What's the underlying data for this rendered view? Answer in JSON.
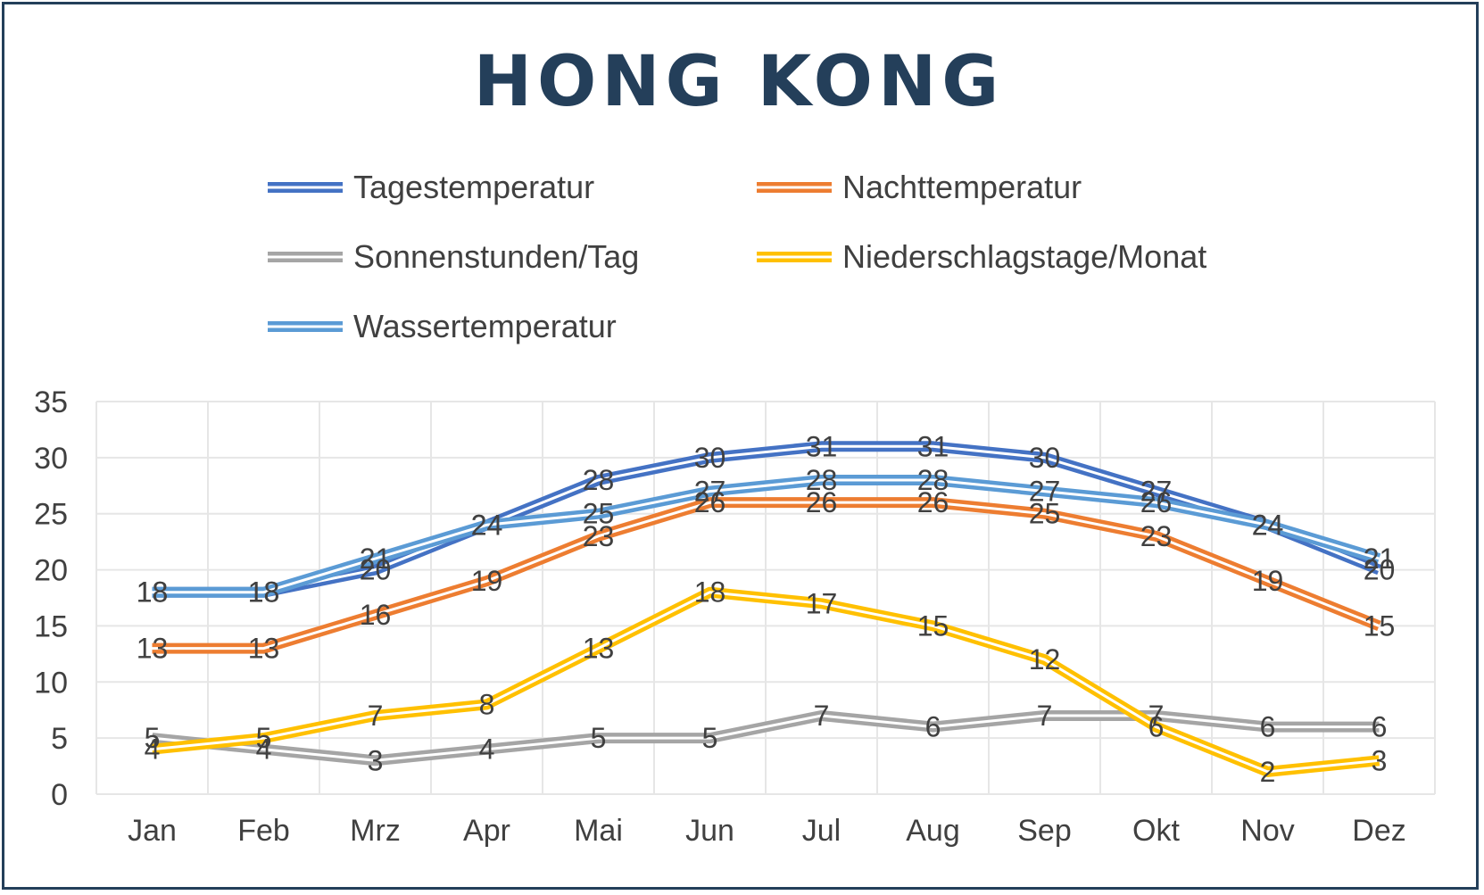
{
  "chart_data": {
    "type": "line",
    "title": "HONG KONG",
    "categories": [
      "Jan",
      "Feb",
      "Mrz",
      "Apr",
      "Mai",
      "Jun",
      "Jul",
      "Aug",
      "Sep",
      "Okt",
      "Nov",
      "Dez"
    ],
    "ylim": [
      0,
      35
    ],
    "yticks": [
      "0",
      "5",
      "10",
      "15",
      "20",
      "25",
      "30",
      "35"
    ],
    "grid": true,
    "legend_position": "top",
    "series": [
      {
        "name": "Tagestemperatur",
        "color": "#4472c4",
        "values": [
          18,
          18,
          20,
          24,
          28,
          30,
          31,
          31,
          30,
          27,
          24,
          20
        ]
      },
      {
        "name": "Nachttemperatur",
        "color": "#ed7d31",
        "values": [
          13,
          13,
          16,
          19,
          23,
          26,
          26,
          26,
          25,
          23,
          19,
          15
        ]
      },
      {
        "name": "Sonnenstunden/Tag",
        "color": "#a5a5a5",
        "values": [
          5,
          4,
          3,
          4,
          5,
          5,
          7,
          6,
          7,
          7,
          6,
          6
        ]
      },
      {
        "name": "Niederschlagstage/Monat",
        "color": "#ffc000",
        "values": [
          4,
          5,
          7,
          8,
          13,
          18,
          17,
          15,
          12,
          6,
          2,
          3
        ]
      },
      {
        "name": "Wassertemperatur",
        "color": "#5b9bd5",
        "values": [
          18,
          18,
          21,
          24,
          25,
          27,
          28,
          28,
          27,
          26,
          24,
          21
        ]
      }
    ]
  }
}
